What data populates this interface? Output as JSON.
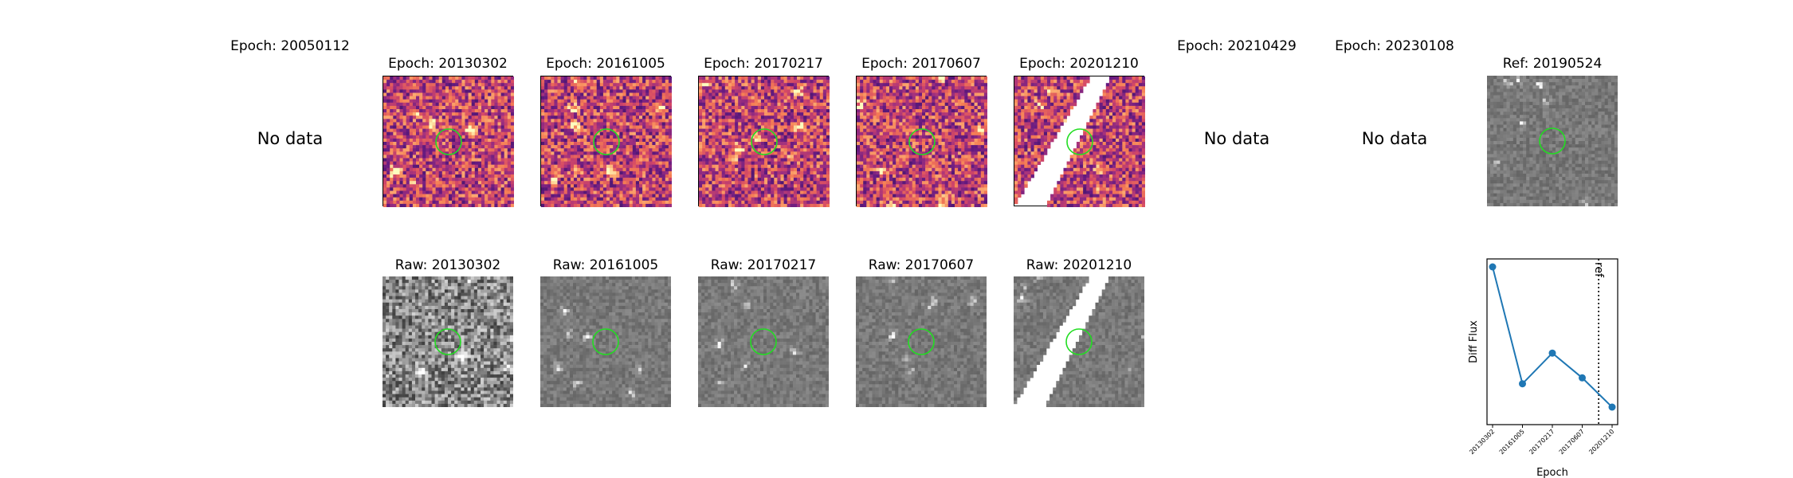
{
  "top_titles": [
    "Epoch: 20050112",
    "Epoch: 20130302",
    "Epoch: 20161005",
    "Epoch: 20170217",
    "Epoch: 20170607",
    "Epoch: 20201210",
    "Epoch: 20210429",
    "Epoch: 20230108",
    "Ref: 20190524"
  ],
  "bottom_titles": [
    "Raw: 20130302",
    "Raw: 20161005",
    "Raw: 20170217",
    "Raw: 20170607",
    "Raw: 20201210"
  ],
  "no_data": [
    "No data",
    "No data",
    "No data"
  ],
  "colors": {
    "marker_circle": "#22dd22",
    "series_line": "#1f77b4",
    "cmap_diff": "magma",
    "cmap_raw": "gray"
  },
  "chart_data": {
    "type": "line",
    "x": [
      "20130302",
      "20161005",
      "20170217",
      "20170607",
      "20201210"
    ],
    "values": [
      1.0,
      0.2,
      0.41,
      0.24,
      0.04
    ],
    "xlabel": "Epoch",
    "ylabel": "Diff Flux",
    "reference_line": {
      "label": "ref",
      "position_between": [
        "20170607",
        "20201210"
      ],
      "fraction": 0.55
    },
    "y_ticks_shown": false,
    "grid": false
  }
}
